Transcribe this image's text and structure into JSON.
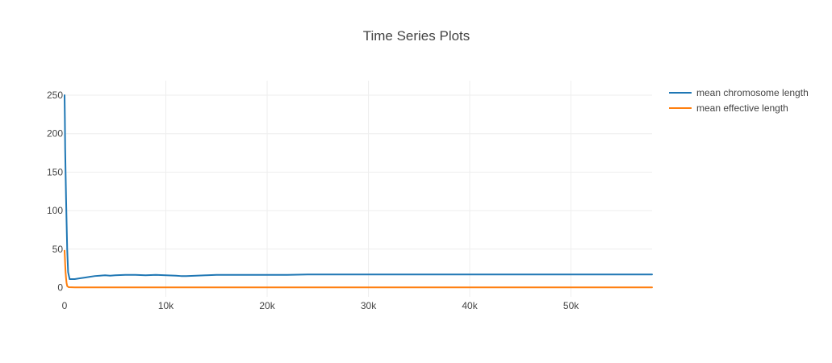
{
  "chart_data": {
    "type": "line",
    "title": "Time Series Plots",
    "xlabel": "",
    "ylabel": "",
    "xlim": [
      0,
      58000
    ],
    "ylim": [
      -5,
      255
    ],
    "grid": true,
    "legend_position": "top-right",
    "x_ticks": [
      {
        "value": 0,
        "label": "0"
      },
      {
        "value": 10000,
        "label": "10k"
      },
      {
        "value": 20000,
        "label": "20k"
      },
      {
        "value": 30000,
        "label": "30k"
      },
      {
        "value": 40000,
        "label": "40k"
      },
      {
        "value": 50000,
        "label": "50k"
      }
    ],
    "y_ticks": [
      {
        "value": 0,
        "label": "0"
      },
      {
        "value": 50,
        "label": "50"
      },
      {
        "value": 100,
        "label": "100"
      },
      {
        "value": 150,
        "label": "150"
      },
      {
        "value": 200,
        "label": "200"
      },
      {
        "value": 250,
        "label": "250"
      }
    ],
    "series": [
      {
        "name": "mean chromosome length",
        "color": "#1f77b4",
        "x": [
          0,
          30,
          60,
          100,
          150,
          200,
          260,
          350,
          500,
          1000,
          1500,
          2000,
          2500,
          3000,
          3500,
          4000,
          4500,
          5000,
          6000,
          7000,
          8000,
          9000,
          10000,
          11000,
          11500,
          12000,
          13000,
          14000,
          15000,
          16000,
          18000,
          20000,
          22000,
          24000,
          26000,
          30000,
          35000,
          40000,
          45000,
          50000,
          55000,
          58000
        ],
        "y": [
          250,
          220,
          180,
          150,
          115,
          85,
          50,
          20,
          11,
          11,
          12,
          13,
          14,
          15,
          15.5,
          16,
          15.5,
          16,
          16.5,
          16.5,
          16,
          16.5,
          16,
          15.5,
          15,
          15,
          15.5,
          16,
          16.5,
          16.5,
          16.5,
          16.5,
          16.5,
          17,
          17,
          17,
          17,
          17,
          17,
          17,
          17,
          17
        ]
      },
      {
        "name": "mean effective length",
        "color": "#ff7f0e",
        "x": [
          0,
          30,
          60,
          100,
          150,
          200,
          260,
          400,
          1000,
          5000,
          10000,
          20000,
          30000,
          40000,
          50000,
          58000
        ],
        "y": [
          48,
          40,
          30,
          20,
          12,
          6,
          2,
          0.5,
          0.3,
          0.3,
          0.3,
          0.3,
          0.3,
          0.3,
          0.3,
          0.3
        ]
      }
    ]
  }
}
